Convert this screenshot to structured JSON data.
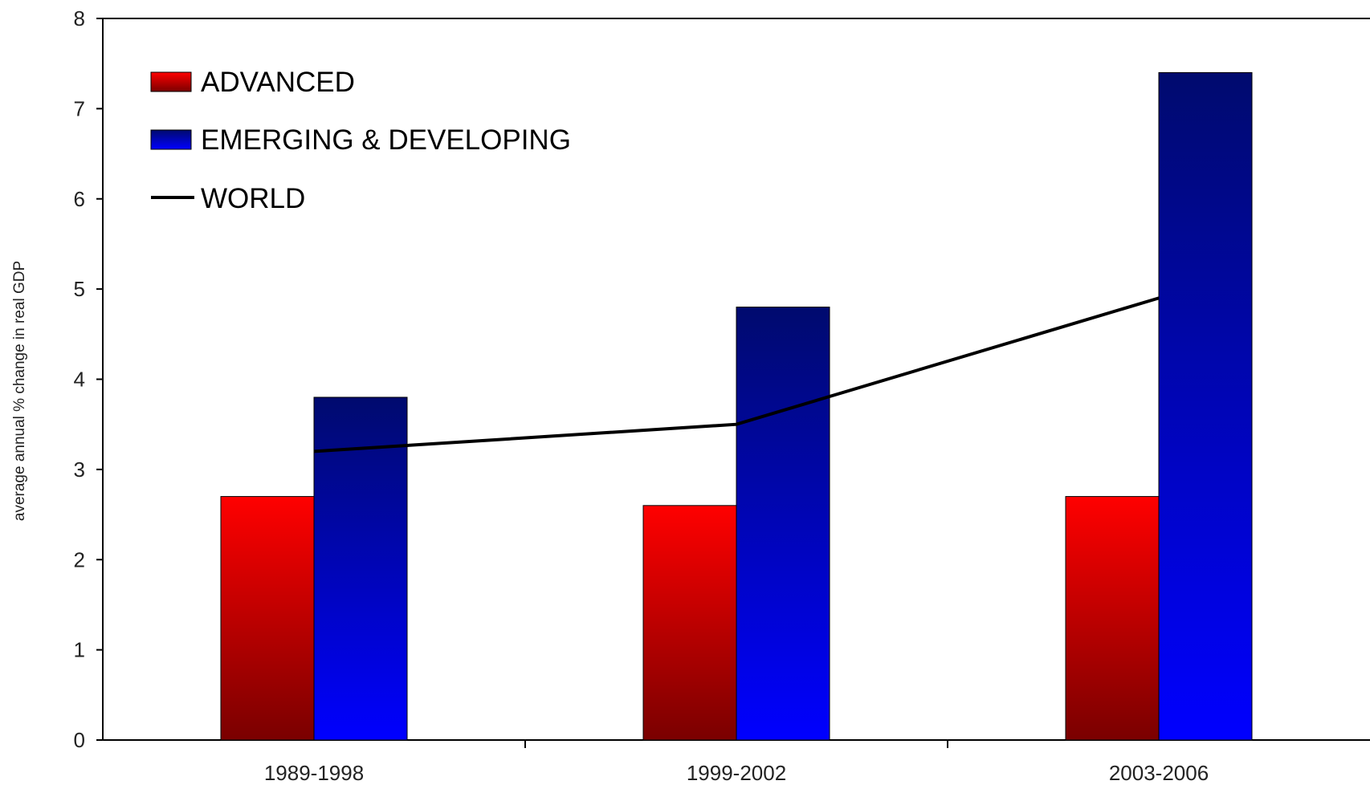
{
  "chart_data": {
    "type": "bar",
    "categories": [
      "1989-1998",
      "1999-2002",
      "2003-2006"
    ],
    "series": [
      {
        "name": "ADVANCED",
        "type": "bar",
        "values": [
          2.7,
          2.6,
          2.7
        ]
      },
      {
        "name": "EMERGING & DEVELOPING",
        "type": "bar",
        "values": [
          3.8,
          4.8,
          7.4
        ]
      },
      {
        "name": "WORLD",
        "type": "line",
        "values": [
          3.2,
          3.5,
          4.9
        ]
      }
    ],
    "title": "",
    "xlabel": "",
    "ylabel": "average annual % change in real GDP",
    "ylim": [
      0,
      8
    ],
    "yticks": [
      0,
      1,
      2,
      3,
      4,
      5,
      6,
      7,
      8
    ],
    "grid": false,
    "legend": "top-left",
    "colors": {
      "advanced_top": "#ff0000",
      "advanced_bottom": "#7a0000",
      "emerging_top": "#000a6e",
      "emerging_bottom": "#0000ff",
      "world_line": "#000000"
    }
  }
}
